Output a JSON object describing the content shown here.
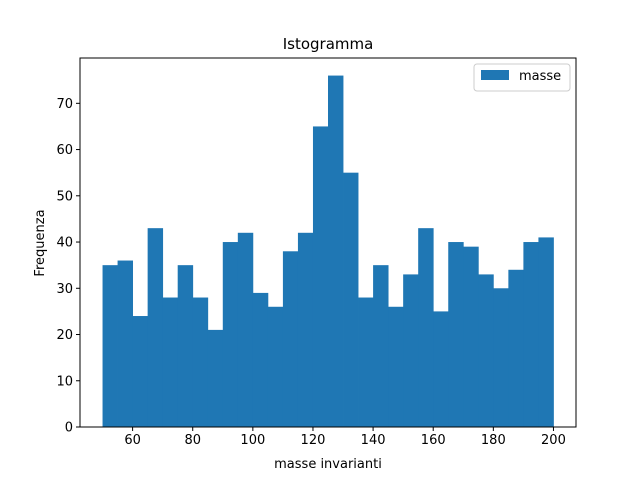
{
  "chart_data": {
    "type": "bar",
    "title": "Istogramma",
    "xlabel": "masse invarianti",
    "ylabel": "Frequenza",
    "bin_start": 50,
    "bin_width": 5,
    "values": [
      35,
      36,
      24,
      43,
      28,
      35,
      28,
      21,
      40,
      42,
      29,
      26,
      38,
      42,
      65,
      76,
      55,
      28,
      35,
      26,
      33,
      43,
      25,
      40,
      39,
      33,
      30,
      34,
      40,
      41
    ],
    "series": [
      {
        "name": "masse",
        "color": "#1f77b4"
      }
    ],
    "xlim": [
      42.5,
      207.5
    ],
    "ylim": [
      0,
      79.8
    ],
    "xticks": [
      60,
      80,
      100,
      120,
      140,
      160,
      180,
      200
    ],
    "yticks": [
      0,
      10,
      20,
      30,
      40,
      50,
      60,
      70
    ],
    "grid": false,
    "legend_position": "top-right"
  }
}
